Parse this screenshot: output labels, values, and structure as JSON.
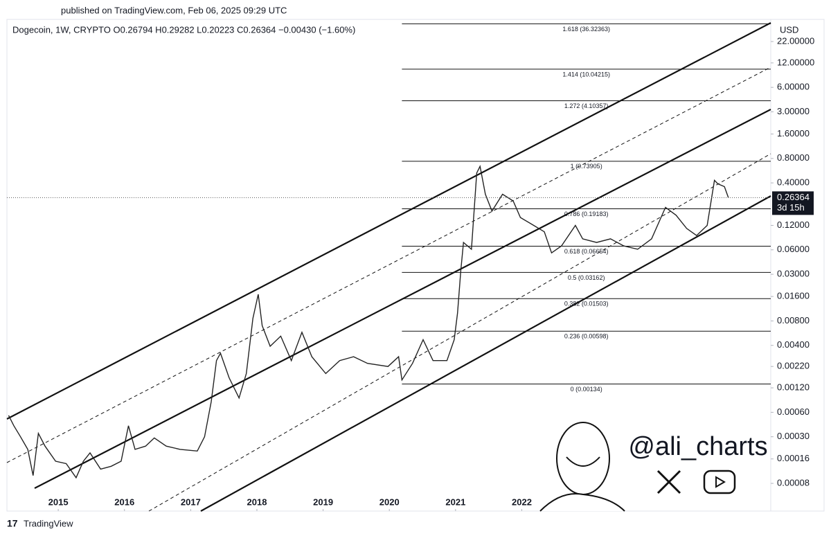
{
  "header": {
    "published": "published on TradingView.com, Feb 06, 2025 09:29 UTC",
    "legend": "Dogecoin, 1W, CRYPTO  O0.26794  H0.29282  L0.20223  C0.26364  −0.00430 (−1.60%)",
    "currency": "USD",
    "countdown": "3d 15h",
    "watermark": "@ali_charts",
    "footer": "TradingView"
  },
  "chart_data": {
    "type": "line",
    "log_scale": true,
    "color": "#222222",
    "x": [
      2014.25,
      2014.33,
      2014.43,
      2014.54,
      2014.62,
      2014.7,
      2014.8,
      2014.96,
      2015.12,
      2015.27,
      2015.38,
      2015.48,
      2015.64,
      2015.8,
      2015.95,
      2016.06,
      2016.16,
      2016.32,
      2016.45,
      2016.63,
      2016.84,
      2017.1,
      2017.21,
      2017.31,
      2017.39,
      2017.45,
      2017.58,
      2017.73,
      2017.84,
      2017.94,
      2018.02,
      2018.08,
      2018.2,
      2018.36,
      2018.52,
      2018.68,
      2018.83,
      2019.04,
      2019.25,
      2019.46,
      2019.67,
      2019.98,
      2020.14,
      2020.19,
      2020.35,
      2020.51,
      2020.66,
      2020.87,
      2020.98,
      2021.03,
      2021.08,
      2021.12,
      2021.24,
      2021.32,
      2021.37,
      2021.45,
      2021.55,
      2021.71,
      2021.87,
      2021.98,
      2022.18,
      2022.34,
      2022.45,
      2022.6,
      2022.81,
      2022.92,
      2023.13,
      2023.34,
      2023.54,
      2023.75,
      2023.96,
      2024.17,
      2024.33,
      2024.49,
      2024.64,
      2024.8,
      2024.91,
      2024.96,
      2025.06,
      2025.12
    ],
    "values": [
      0.00055,
      0.00041,
      0.0003,
      0.00021,
      0.0001,
      0.00033,
      0.00023,
      0.00015,
      0.00014,
      9.4e-05,
      0.00015,
      0.00019,
      0.00012,
      0.00013,
      0.00015,
      0.00041,
      0.00021,
      0.00023,
      0.00029,
      0.00023,
      0.00021,
      0.0002,
      0.0003,
      0.00081,
      0.0026,
      0.0032,
      0.0016,
      0.0009,
      0.0018,
      0.0086,
      0.017,
      0.007,
      0.0039,
      0.0052,
      0.0026,
      0.0058,
      0.0029,
      0.0018,
      0.0026,
      0.0029,
      0.0024,
      0.0022,
      0.0029,
      0.0015,
      0.0024,
      0.0047,
      0.0026,
      0.0026,
      0.0047,
      0.01,
      0.034,
      0.074,
      0.061,
      0.53,
      0.64,
      0.29,
      0.18,
      0.29,
      0.24,
      0.15,
      0.12,
      0.1,
      0.055,
      0.067,
      0.12,
      0.082,
      0.074,
      0.082,
      0.067,
      0.061,
      0.082,
      0.2,
      0.16,
      0.11,
      0.09,
      0.12,
      0.43,
      0.39,
      0.36,
      0.26364
    ],
    "xlim": [
      2014.225,
      2025.76
    ],
    "xticks": [
      2015,
      2016,
      2017,
      2018,
      2019,
      2020,
      2021,
      2022
    ],
    "ylim": [
      3.65e-05,
      41.2
    ],
    "yticks": [
      {
        "value": 8e-05,
        "label": "0.00008"
      },
      {
        "value": 0.00016,
        "label": "0.00016"
      },
      {
        "value": 0.0003,
        "label": "0.00030"
      },
      {
        "value": 0.0006,
        "label": "0.00060"
      },
      {
        "value": 0.0012,
        "label": "0.00120"
      },
      {
        "value": 0.0022,
        "label": "0.00220"
      },
      {
        "value": 0.004,
        "label": "0.00400"
      },
      {
        "value": 0.008,
        "label": "0.00800"
      },
      {
        "value": 0.016,
        "label": "0.01600"
      },
      {
        "value": 0.03,
        "label": "0.03000"
      },
      {
        "value": 0.06,
        "label": "0.06000"
      },
      {
        "value": 0.12,
        "label": "0.12000"
      },
      {
        "value": 0.4,
        "label": "0.40000"
      },
      {
        "value": 0.8,
        "label": "0.80000"
      },
      {
        "value": 1.6,
        "label": "1.60000"
      },
      {
        "value": 3,
        "label": "3.00000"
      },
      {
        "value": 6,
        "label": "6.00000"
      },
      {
        "value": 12,
        "label": "12.00000"
      },
      {
        "value": 22,
        "label": "22.00000"
      }
    ],
    "fib_start": 2020.19,
    "fib_levels": [
      {
        "price": 0.00134,
        "label": "0 (0.00134)"
      },
      {
        "price": 0.00598,
        "label": "0.236 (0.00598)"
      },
      {
        "price": 0.01503,
        "label": "0.382 (0.01503)"
      },
      {
        "price": 0.03162,
        "label": "0.5 (0.03162)"
      },
      {
        "price": 0.06654,
        "label": "0.618 (0.06654)"
      },
      {
        "price": 0.19183,
        "label": "0.786 (0.19183)"
      },
      {
        "price": 0.73905,
        "label": "1 (0.73905)"
      },
      {
        "price": 4.10357,
        "label": "1.272 (4.10357)"
      },
      {
        "price": 10.04215,
        "label": "1.414 (10.04215)"
      },
      {
        "price": 36.32363,
        "label": "1.618 (36.32363)"
      }
    ]
  }
}
